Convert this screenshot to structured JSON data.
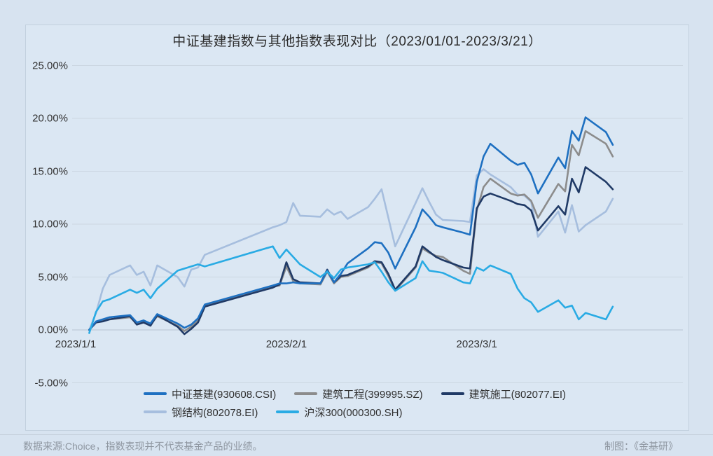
{
  "chart_data": {
    "type": "line",
    "title": "中证基建指数与其他指数表现对比（2023/01/01-2023/3/21）",
    "xlabel": "",
    "ylabel": "",
    "grid": "horizontal",
    "legend_position": "bottom",
    "ylim": [
      -6.5,
      26.5
    ],
    "x_axis_ticks": [
      "2023/1/1",
      "2023/2/1",
      "2023/3/1"
    ],
    "y_ticks": [
      {
        "label": "25.00%",
        "value": 25
      },
      {
        "label": "20.00%",
        "value": 20
      },
      {
        "label": "15.00%",
        "value": 15
      },
      {
        "label": "10.00%",
        "value": 10
      },
      {
        "label": "5.00%",
        "value": 5
      },
      {
        "label": "0.00%",
        "value": 0
      },
      {
        "label": "-5.00%",
        "value": -5
      }
    ],
    "x_dates": [
      "1/3",
      "1/4",
      "1/5",
      "1/6",
      "1/9",
      "1/10",
      "1/11",
      "1/12",
      "1/13",
      "1/16",
      "1/17",
      "1/18",
      "1/19",
      "1/20",
      "1/30",
      "1/31",
      "2/1",
      "2/2",
      "2/3",
      "2/6",
      "2/7",
      "2/8",
      "2/9",
      "2/10",
      "2/13",
      "2/14",
      "2/15",
      "2/16",
      "2/17",
      "2/20",
      "2/21",
      "2/22",
      "2/23",
      "2/24",
      "2/27",
      "2/28",
      "3/1",
      "3/2",
      "3/3",
      "3/6",
      "3/7",
      "3/8",
      "3/9",
      "3/10",
      "3/13",
      "3/14",
      "3/15",
      "3/16",
      "3/17",
      "3/20",
      "3/21"
    ],
    "series": [
      {
        "name": "中证基建(930608.CSI)",
        "color": "#1e70c1",
        "values": [
          0.0,
          0.8,
          1.0,
          1.2,
          1.4,
          0.7,
          0.9,
          0.6,
          1.5,
          0.6,
          0.2,
          0.5,
          1.1,
          2.4,
          4.2,
          4.4,
          4.4,
          4.5,
          4.4,
          4.4,
          5.6,
          4.5,
          5.3,
          6.3,
          7.7,
          8.3,
          8.2,
          7.3,
          5.8,
          9.7,
          11.4,
          10.7,
          9.9,
          9.7,
          9.2,
          9.0,
          14.0,
          16.4,
          17.6,
          16.0,
          15.6,
          15.8,
          14.7,
          12.9,
          16.3,
          15.3,
          18.8,
          17.9,
          20.1,
          18.7,
          17.5
        ]
      },
      {
        "name": "建筑工程(399995.SZ)",
        "color": "#8c8c8c",
        "values": [
          0.0,
          0.7,
          0.9,
          1.0,
          1.2,
          0.6,
          0.8,
          0.5,
          1.3,
          0.4,
          -0.1,
          0.3,
          0.9,
          2.3,
          4.1,
          4.2,
          6.0,
          4.6,
          4.4,
          4.3,
          5.5,
          4.4,
          5.0,
          5.1,
          5.9,
          6.4,
          6.3,
          5.1,
          3.7,
          5.9,
          7.7,
          7.3,
          7.0,
          6.9,
          5.6,
          5.3,
          11.3,
          13.5,
          14.3,
          12.9,
          12.7,
          12.8,
          12.2,
          10.6,
          13.8,
          13.1,
          17.5,
          16.5,
          18.8,
          17.6,
          16.4
        ]
      },
      {
        "name": "建筑施工(802077.EI)",
        "color": "#203a66",
        "values": [
          0.0,
          0.7,
          0.8,
          1.0,
          1.3,
          0.5,
          0.7,
          0.4,
          1.4,
          0.3,
          -0.4,
          0.1,
          0.7,
          2.2,
          4.0,
          4.3,
          6.4,
          4.8,
          4.5,
          4.4,
          5.7,
          4.5,
          5.1,
          5.2,
          6.0,
          6.5,
          6.4,
          5.3,
          3.8,
          6.0,
          7.9,
          7.4,
          6.9,
          6.6,
          5.9,
          5.8,
          11.5,
          12.6,
          12.9,
          12.2,
          11.9,
          11.8,
          11.3,
          9.4,
          11.7,
          10.9,
          14.3,
          13.0,
          15.4,
          14.0,
          13.3
        ]
      },
      {
        "name": "钢结构(802078.EI)",
        "color": "#a6bede",
        "values": [
          0.0,
          1.6,
          3.9,
          5.2,
          6.1,
          5.2,
          5.5,
          4.2,
          6.1,
          5.0,
          4.1,
          5.7,
          5.9,
          7.1,
          9.7,
          9.9,
          10.2,
          12.0,
          10.8,
          10.7,
          11.4,
          10.9,
          11.2,
          10.5,
          11.6,
          12.4,
          13.3,
          10.6,
          7.9,
          12.0,
          13.4,
          12.1,
          10.9,
          10.4,
          10.3,
          10.2,
          14.6,
          15.2,
          14.7,
          13.5,
          12.8,
          12.7,
          12.1,
          8.8,
          11.2,
          9.2,
          11.8,
          9.3,
          9.9,
          11.2,
          12.4
        ]
      },
      {
        "name": "沪深300(000300.SH)",
        "color": "#29abe4",
        "values": [
          -0.3,
          1.7,
          2.7,
          2.9,
          3.8,
          3.5,
          3.8,
          3.0,
          3.9,
          5.6,
          5.8,
          6.0,
          6.2,
          6.0,
          7.9,
          6.8,
          7.6,
          6.9,
          6.2,
          5.0,
          5.5,
          4.9,
          5.7,
          5.9,
          6.2,
          6.4,
          5.5,
          4.5,
          3.7,
          4.9,
          6.5,
          5.6,
          5.5,
          5.4,
          4.5,
          4.4,
          5.9,
          5.6,
          6.1,
          5.3,
          3.9,
          3.0,
          2.6,
          1.7,
          2.8,
          2.1,
          2.3,
          1.0,
          1.6,
          1.0,
          2.2
        ]
      }
    ]
  },
  "footer": {
    "source": "数据来源:Choice，指数表现并不代表基金产品的业绩。",
    "credit": "制图：《金基研》"
  },
  "colors": {
    "page_background": "#d7e3f0",
    "panel_background": "#dbe7f3",
    "panel_border": "#c2d0de",
    "gridline": "#ccd7e2",
    "zero_axis": "#b7c3d0",
    "text": "#2d2d2d",
    "footer_text": "#8e96a0"
  }
}
